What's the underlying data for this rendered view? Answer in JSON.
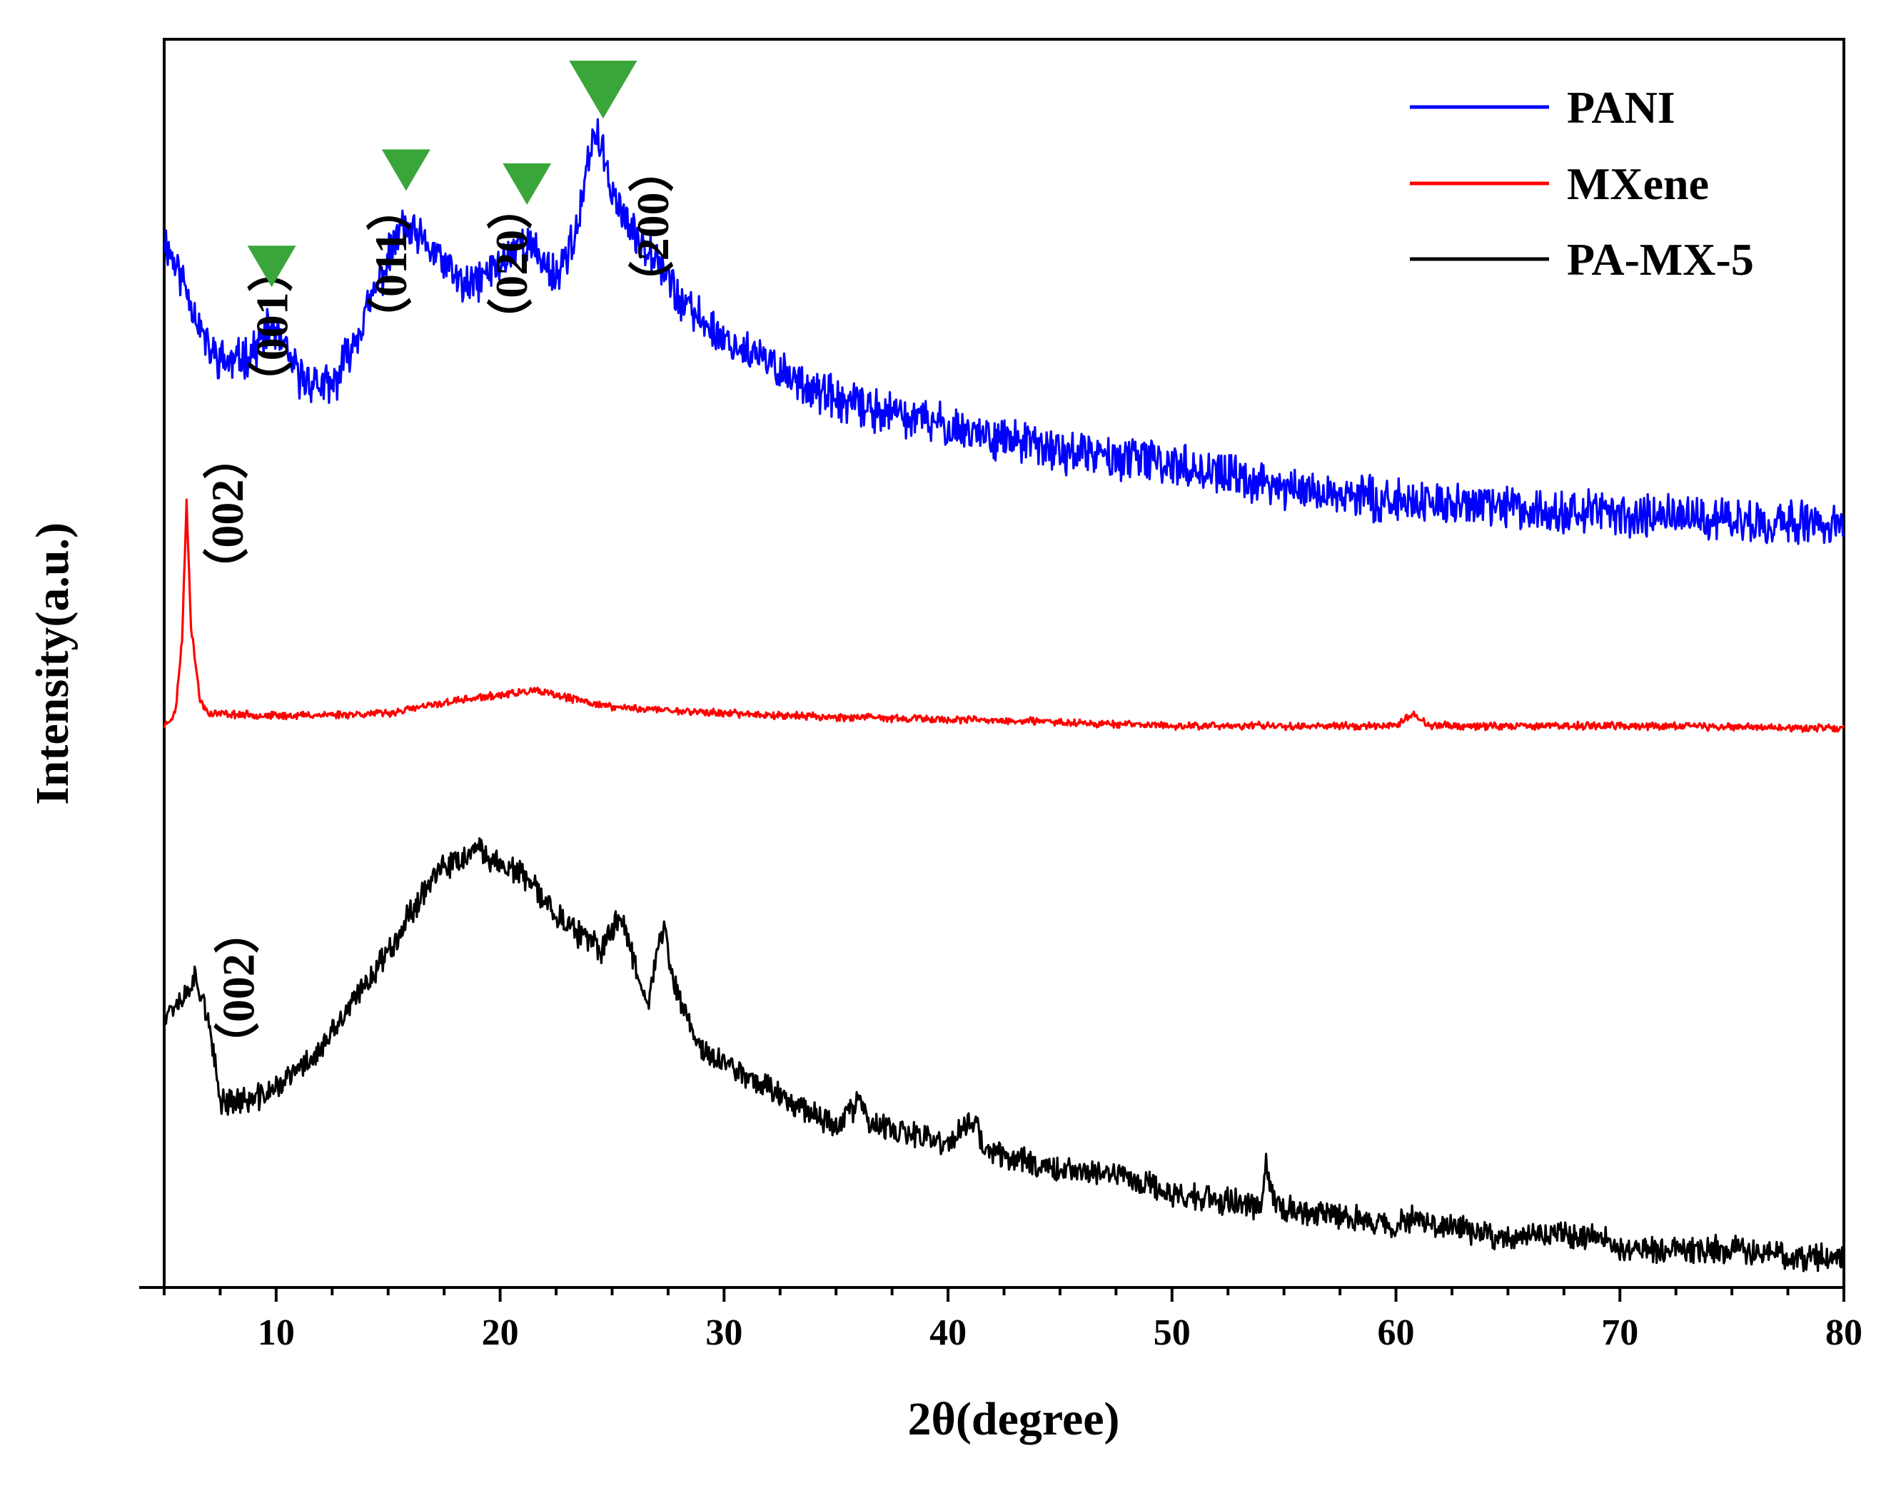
{
  "chart_data": {
    "type": "line",
    "title": "",
    "xlabel": "2θ(degree)",
    "ylabel": "Intensity(a.u.)",
    "xlim": [
      5,
      80
    ],
    "ylim": [
      0,
      100
    ],
    "xticks": [
      10,
      20,
      30,
      40,
      50,
      60,
      70,
      80
    ],
    "xtick_labels": [
      "10",
      "20",
      "30",
      "40",
      "50",
      "60",
      "70",
      "80"
    ],
    "y_tick_labels_shown": false,
    "grid": false,
    "legend_position": "top-right",
    "series": [
      {
        "name": "PANI",
        "color": "#0000ff",
        "noise": 1.4,
        "seed": 11,
        "points": [
          [
            5,
            84
          ],
          [
            6,
            80
          ],
          [
            7,
            75
          ],
          [
            8,
            74
          ],
          [
            9,
            75
          ],
          [
            9.8,
            77
          ],
          [
            11,
            73
          ],
          [
            12.5,
            72
          ],
          [
            14,
            78
          ],
          [
            15.6,
            85
          ],
          [
            17,
            83
          ],
          [
            18.5,
            80
          ],
          [
            20,
            82
          ],
          [
            21,
            84
          ],
          [
            22.5,
            81
          ],
          [
            23.5,
            85
          ],
          [
            24.2,
            93
          ],
          [
            25,
            88
          ],
          [
            26,
            84
          ],
          [
            27,
            83
          ],
          [
            28,
            79
          ],
          [
            30,
            76
          ],
          [
            32,
            74
          ],
          [
            35,
            71
          ],
          [
            40,
            69
          ],
          [
            45,
            67
          ],
          [
            50,
            66
          ],
          [
            55,
            64
          ],
          [
            60,
            63
          ],
          [
            65,
            62.5
          ],
          [
            70,
            62
          ],
          [
            75,
            61.5
          ],
          [
            80,
            61
          ]
        ]
      },
      {
        "name": "MXene",
        "color": "#ff0000",
        "noise": 0.25,
        "seed": 23,
        "points": [
          [
            5,
            45
          ],
          [
            5.5,
            46
          ],
          [
            5.8,
            52
          ],
          [
            6.0,
            63
          ],
          [
            6.2,
            53
          ],
          [
            6.6,
            47
          ],
          [
            7,
            46
          ],
          [
            10,
            45.8
          ],
          [
            15,
            46
          ],
          [
            18,
            47
          ],
          [
            21.5,
            47.8
          ],
          [
            25,
            46.5
          ],
          [
            30,
            46
          ],
          [
            35,
            45.7
          ],
          [
            40,
            45.5
          ],
          [
            45,
            45.3
          ],
          [
            50,
            45
          ],
          [
            55,
            45
          ],
          [
            60,
            45
          ],
          [
            60.8,
            46
          ],
          [
            61.5,
            45
          ],
          [
            70,
            45
          ],
          [
            80,
            44.8
          ]
        ]
      },
      {
        "name": "PA-MX-5",
        "color": "#000000",
        "noise": 0.9,
        "seed": 37,
        "points": [
          [
            5,
            22
          ],
          [
            6,
            23.5
          ],
          [
            6.3,
            25
          ],
          [
            6.8,
            23
          ],
          [
            7.5,
            15
          ],
          [
            9,
            15
          ],
          [
            10,
            16
          ],
          [
            12,
            19
          ],
          [
            15,
            27
          ],
          [
            17,
            33
          ],
          [
            19,
            35
          ],
          [
            21,
            33
          ],
          [
            23,
            29
          ],
          [
            24.5,
            27
          ],
          [
            25.4,
            30
          ],
          [
            26,
            26
          ],
          [
            26.6,
            23
          ],
          [
            27.3,
            29
          ],
          [
            27.8,
            24
          ],
          [
            29,
            19
          ],
          [
            31,
            17
          ],
          [
            35,
            13
          ],
          [
            36.1,
            15
          ],
          [
            36.5,
            13
          ],
          [
            40,
            11.5
          ],
          [
            41.2,
            13.5
          ],
          [
            41.6,
            11
          ],
          [
            45,
            9.5
          ],
          [
            47.8,
            9
          ],
          [
            50,
            7.5
          ],
          [
            54,
            6.5
          ],
          [
            54.2,
            10
          ],
          [
            54.6,
            6.5
          ],
          [
            56.2,
            6
          ],
          [
            60,
            5
          ],
          [
            61,
            5.5
          ],
          [
            65,
            4
          ],
          [
            68.8,
            4.3
          ],
          [
            70,
            3
          ],
          [
            75,
            3
          ],
          [
            80,
            2.2
          ]
        ]
      }
    ],
    "annotations": [
      {
        "text": "（001）",
        "x": 10.5,
        "y": 77,
        "series": "PANI",
        "marker": "green-triangle",
        "marker_x": 9.8
      },
      {
        "text": "（011）",
        "x": 15.8,
        "y": 82,
        "series": "PANI",
        "marker": "green-triangle",
        "marker_x": 15.8
      },
      {
        "text": "（020）",
        "x": 21.2,
        "y": 82,
        "series": "PANI",
        "marker": "green-triangle",
        "marker_x": 21.2
      },
      {
        "text": "（200）",
        "x": 27.5,
        "y": 85,
        "series": "PANI",
        "marker": "green-triangle",
        "marker_x": 24.6
      },
      {
        "text": "（002）",
        "x": 8.5,
        "y": 62,
        "series": "MXene"
      },
      {
        "text": "（002）",
        "x": 9.0,
        "y": 24,
        "series": "PA-MX-5"
      }
    ]
  },
  "legend": {
    "items": [
      "PANI",
      "MXene",
      "PA-MX-5"
    ]
  }
}
